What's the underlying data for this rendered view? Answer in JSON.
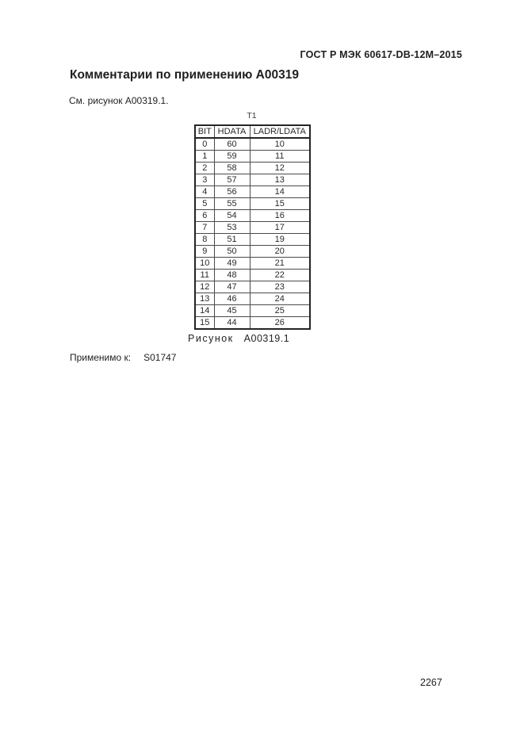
{
  "document": {
    "header": "ГОСТ Р МЭК 60617-DB-12M–2015",
    "title": "Комментарии по применению A00319",
    "see_figure_note": "См. рисунок A00319.1.",
    "applicable_label": "Применимо к:",
    "applicable_value": "S01747",
    "page_number": "2267"
  },
  "figure": {
    "table_title": "T1",
    "caption_label": "Рисунок",
    "caption_number": "A00319.1",
    "table": {
      "columns": [
        "BIT",
        "HDATA",
        "LADR/LDATA"
      ],
      "rows": [
        [
          "0",
          "60",
          "10"
        ],
        [
          "1",
          "59",
          "11"
        ],
        [
          "2",
          "58",
          "12"
        ],
        [
          "3",
          "57",
          "13"
        ],
        [
          "4",
          "56",
          "14"
        ],
        [
          "5",
          "55",
          "15"
        ],
        [
          "6",
          "54",
          "16"
        ],
        [
          "7",
          "53",
          "17"
        ],
        [
          "8",
          "51",
          "19"
        ],
        [
          "9",
          "50",
          "20"
        ],
        [
          "10",
          "49",
          "21"
        ],
        [
          "11",
          "48",
          "22"
        ],
        [
          "12",
          "47",
          "23"
        ],
        [
          "13",
          "46",
          "24"
        ],
        [
          "14",
          "45",
          "25"
        ],
        [
          "15",
          "44",
          "26"
        ]
      ]
    }
  },
  "colors": {
    "background": "#ffffff",
    "text": "#1f1f1f",
    "table_outer_border": "#242424",
    "table_inner_border": "#4a4a4a"
  }
}
